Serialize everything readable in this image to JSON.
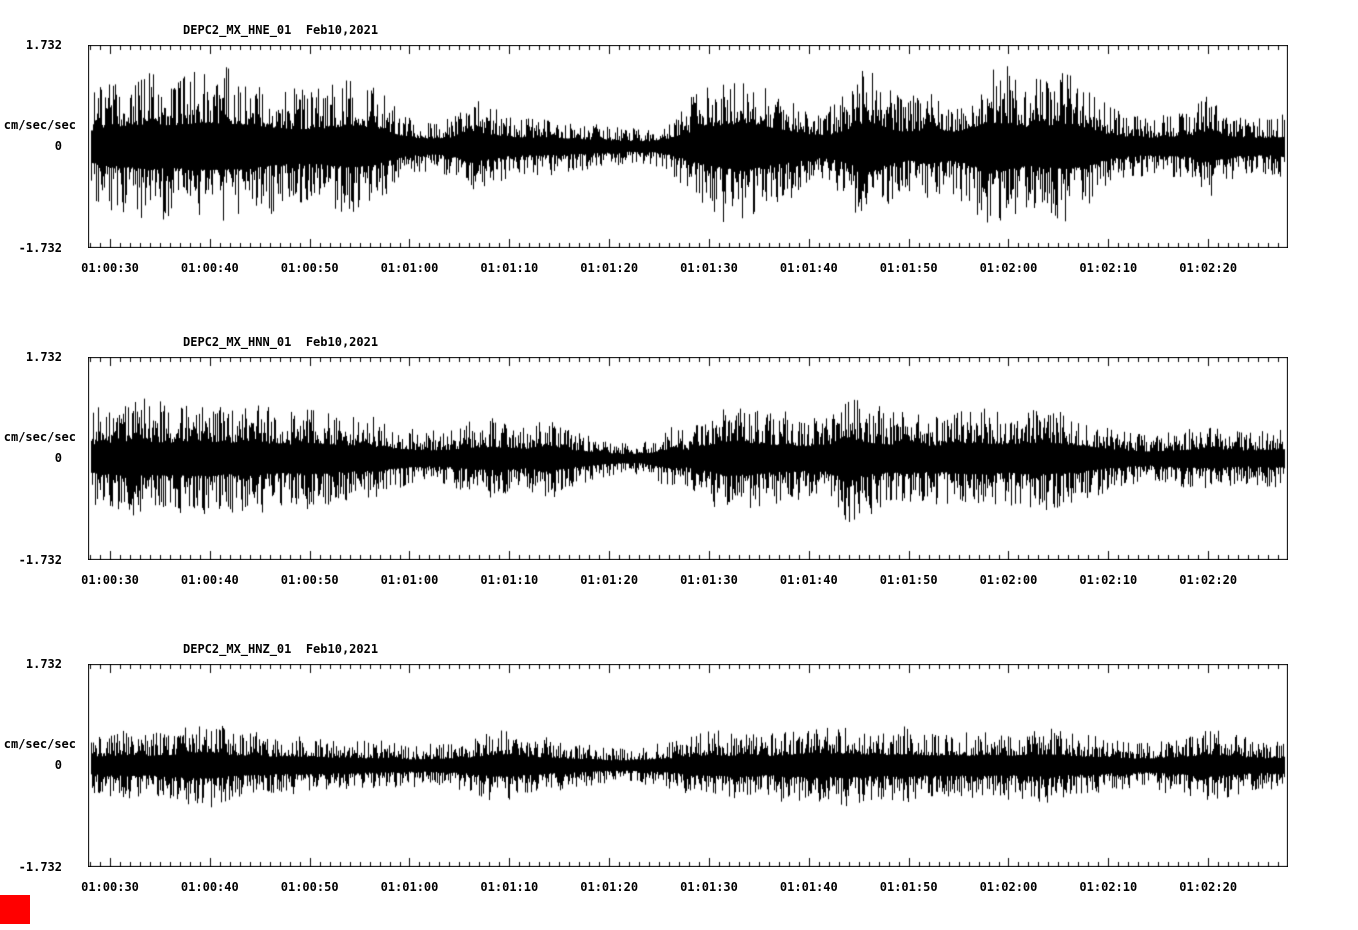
{
  "figure": {
    "background": "#ffffff",
    "trace_color": "#000000",
    "marker_color": "#ff0000"
  },
  "axis": {
    "y_top_label": "1.732",
    "y_zero_label": "0",
    "y_bottom_label": "-1.732",
    "y_unit_label": "cm/sec/sec",
    "x_tick_labels": [
      "01:00:30",
      "01:00:40",
      "01:00:50",
      "01:01:00",
      "01:01:10",
      "01:01:20",
      "01:01:30",
      "01:01:40",
      "01:01:50",
      "01:02:00",
      "01:02:10",
      "01:02:20"
    ]
  },
  "panels": [
    {
      "title": "DEPC2_MX_HNE_01  Feb10,2021"
    },
    {
      "title": "DEPC2_MX_HNN_01  Feb10,2021"
    },
    {
      "title": "DEPC2_MX_HNZ_01  Feb10,2021"
    }
  ],
  "chart_data": [
    {
      "type": "line",
      "title": "DEPC2_MX_HNE_01  Feb10,2021",
      "xlabel": "",
      "ylabel": "cm/sec/sec",
      "ylim": [
        -1.732,
        1.732
      ],
      "x_start": "01:00:28",
      "x_end": "01:02:28",
      "x_tick_labels": [
        "01:00:30",
        "01:00:40",
        "01:00:50",
        "01:01:00",
        "01:01:10",
        "01:01:20",
        "01:01:30",
        "01:01:40",
        "01:01:50",
        "01:02:00",
        "01:02:10",
        "01:02:20"
      ],
      "series_kind": "seismic acceleration waveform; dense zero-mean trace, values recorded as peak-amplitude envelope every 2 s from left edge",
      "envelope_step_seconds": 2,
      "envelope": [
        0.9,
        1.1,
        1.2,
        1.3,
        1.2,
        1.3,
        1.35,
        1.3,
        1.25,
        1.1,
        1.0,
        1.0,
        1.05,
        1.2,
        1.1,
        0.8,
        0.5,
        0.45,
        0.5,
        0.9,
        0.7,
        0.55,
        0.5,
        0.5,
        0.45,
        0.4,
        0.35,
        0.3,
        0.3,
        0.45,
        0.8,
        1.1,
        1.25,
        1.3,
        1.1,
        0.9,
        0.7,
        0.65,
        1.0,
        1.45,
        1.0,
        0.8,
        1.0,
        0.8,
        1.0,
        1.35,
        1.3,
        1.1,
        1.2,
        1.3,
        1.0,
        0.7,
        0.55,
        0.5,
        0.55,
        0.6,
        0.9,
        0.6,
        0.5,
        0.5,
        0.55
      ]
    },
    {
      "type": "line",
      "title": "DEPC2_MX_HNN_01  Feb10,2021",
      "xlabel": "",
      "ylabel": "cm/sec/sec",
      "ylim": [
        -1.732,
        1.732
      ],
      "x_start": "01:00:28",
      "x_end": "01:02:28",
      "x_tick_labels": [
        "01:00:30",
        "01:00:40",
        "01:00:50",
        "01:01:00",
        "01:01:10",
        "01:01:20",
        "01:01:30",
        "01:01:40",
        "01:01:50",
        "01:02:00",
        "01:02:10",
        "01:02:20"
      ],
      "series_kind": "seismic acceleration waveform; dense zero-mean trace, values recorded as peak-amplitude envelope every 2 s from left edge",
      "envelope_step_seconds": 2,
      "envelope": [
        0.8,
        0.9,
        1.0,
        0.95,
        0.9,
        1.0,
        0.95,
        0.9,
        1.0,
        0.85,
        0.8,
        0.9,
        0.8,
        0.75,
        0.7,
        0.6,
        0.5,
        0.45,
        0.5,
        0.6,
        0.65,
        0.6,
        0.55,
        0.75,
        0.5,
        0.4,
        0.3,
        0.25,
        0.3,
        0.55,
        0.5,
        0.75,
        1.0,
        0.9,
        0.8,
        0.75,
        0.7,
        0.75,
        1.15,
        0.9,
        0.8,
        0.85,
        0.7,
        0.8,
        0.9,
        0.85,
        0.8,
        0.9,
        0.9,
        0.8,
        0.7,
        0.55,
        0.45,
        0.4,
        0.45,
        0.5,
        0.55,
        0.5,
        0.45,
        0.5,
        0.5
      ]
    },
    {
      "type": "line",
      "title": "DEPC2_MX_HNZ_01  Feb10,2021",
      "xlabel": "",
      "ylabel": "cm/sec/sec",
      "ylim": [
        -1.732,
        1.732
      ],
      "x_start": "01:00:28",
      "x_end": "01:02:28",
      "x_tick_labels": [
        "01:00:30",
        "01:00:40",
        "01:00:50",
        "01:01:00",
        "01:01:10",
        "01:01:20",
        "01:01:30",
        "01:01:40",
        "01:01:50",
        "01:02:00",
        "01:02:10",
        "01:02:20"
      ],
      "series_kind": "seismic acceleration waveform; dense zero-mean trace, values recorded as peak-amplitude envelope every 2 s from left edge",
      "envelope_step_seconds": 2,
      "envelope": [
        0.5,
        0.55,
        0.6,
        0.55,
        0.6,
        0.7,
        0.75,
        0.6,
        0.55,
        0.5,
        0.5,
        0.5,
        0.45,
        0.45,
        0.4,
        0.4,
        0.35,
        0.35,
        0.4,
        0.45,
        0.6,
        0.65,
        0.5,
        0.45,
        0.4,
        0.35,
        0.3,
        0.3,
        0.35,
        0.4,
        0.5,
        0.6,
        0.55,
        0.6,
        0.55,
        0.6,
        0.7,
        0.65,
        0.7,
        0.6,
        0.6,
        0.65,
        0.55,
        0.6,
        0.55,
        0.6,
        0.55,
        0.6,
        0.65,
        0.55,
        0.5,
        0.45,
        0.4,
        0.4,
        0.45,
        0.5,
        0.65,
        0.55,
        0.45,
        0.4,
        0.45
      ]
    }
  ]
}
